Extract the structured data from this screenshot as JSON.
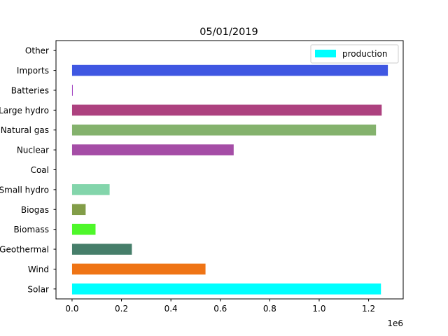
{
  "chart_data": {
    "type": "bar",
    "orientation": "horizontal",
    "title": "05/01/2019",
    "xlabel": "",
    "ylabel": "",
    "x_offset_label": "1e6",
    "xlim": [
      -65000,
      1340000
    ],
    "x_ticks": [
      0,
      200000,
      400000,
      600000,
      800000,
      1000000,
      1200000
    ],
    "x_tick_labels": [
      "0.0",
      "0.2",
      "0.4",
      "0.6",
      "0.8",
      "1.0",
      "1.2"
    ],
    "grid": false,
    "legend": {
      "position": "top-right",
      "entries": [
        {
          "label": "production",
          "color": "#00ffff"
        }
      ]
    },
    "categories": [
      "Solar",
      "Wind",
      "Geothermal",
      "Biomass",
      "Biogas",
      "Small hydro",
      "Coal",
      "Nuclear",
      "Natural gas",
      "Large hydro",
      "Batteries",
      "Imports",
      "Other"
    ],
    "values": [
      1250000,
      540000,
      242000,
      95000,
      55000,
      152000,
      0,
      654000,
      1230000,
      1253000,
      3000,
      1278000,
      0
    ],
    "colors": [
      "#00ffff",
      "#ef7415",
      "#467e6a",
      "#4ef72a",
      "#829d48",
      "#83d5ab",
      "#000000",
      "#a54da6",
      "#84b26d",
      "#ad417f",
      "#a549c4",
      "#3f57e2",
      "#cccccc"
    ]
  }
}
